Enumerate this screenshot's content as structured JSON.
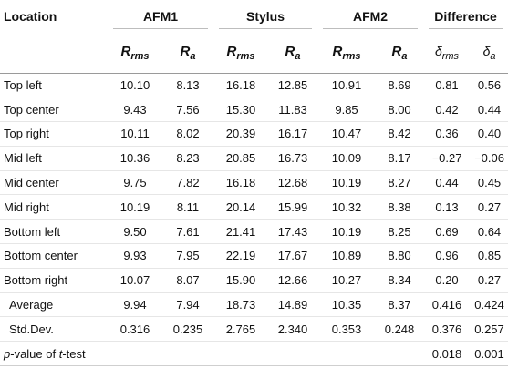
{
  "table": {
    "headers": {
      "location": "Location",
      "groups": [
        "AFM1",
        "Stylus",
        "AFM2",
        "Difference"
      ],
      "sub": {
        "rms_base": "R",
        "rms_sub": "rms",
        "a_base": "R",
        "a_sub": "a",
        "d_rms_base": "δ",
        "d_rms_sub": "rms",
        "d_a_base": "δ",
        "d_a_sub": "a"
      }
    },
    "rows": [
      {
        "location": "Top left",
        "afm1_rms": "10.10",
        "afm1_a": "8.13",
        "stylus_rms": "16.18",
        "stylus_a": "12.85",
        "afm2_rms": "10.91",
        "afm2_a": "8.69",
        "d_rms": "0.81",
        "d_a": "0.56"
      },
      {
        "location": "Top center",
        "afm1_rms": "9.43",
        "afm1_a": "7.56",
        "stylus_rms": "15.30",
        "stylus_a": "11.83",
        "afm2_rms": "9.85",
        "afm2_a": "8.00",
        "d_rms": "0.42",
        "d_a": "0.44"
      },
      {
        "location": "Top right",
        "afm1_rms": "10.11",
        "afm1_a": "8.02",
        "stylus_rms": "20.39",
        "stylus_a": "16.17",
        "afm2_rms": "10.47",
        "afm2_a": "8.42",
        "d_rms": "0.36",
        "d_a": "0.40"
      },
      {
        "location": "Mid left",
        "afm1_rms": "10.36",
        "afm1_a": "8.23",
        "stylus_rms": "20.85",
        "stylus_a": "16.73",
        "afm2_rms": "10.09",
        "afm2_a": "8.17",
        "d_rms": "−0.27",
        "d_a": "−0.06"
      },
      {
        "location": "Mid center",
        "afm1_rms": "9.75",
        "afm1_a": "7.82",
        "stylus_rms": "16.18",
        "stylus_a": "12.68",
        "afm2_rms": "10.19",
        "afm2_a": "8.27",
        "d_rms": "0.44",
        "d_a": "0.45"
      },
      {
        "location": "Mid right",
        "afm1_rms": "10.19",
        "afm1_a": "8.11",
        "stylus_rms": "20.14",
        "stylus_a": "15.99",
        "afm2_rms": "10.32",
        "afm2_a": "8.38",
        "d_rms": "0.13",
        "d_a": "0.27"
      },
      {
        "location": "Bottom left",
        "afm1_rms": "9.50",
        "afm1_a": "7.61",
        "stylus_rms": "21.41",
        "stylus_a": "17.43",
        "afm2_rms": "10.19",
        "afm2_a": "8.25",
        "d_rms": "0.69",
        "d_a": "0.64"
      },
      {
        "location": "Bottom center",
        "afm1_rms": "9.93",
        "afm1_a": "7.95",
        "stylus_rms": "22.19",
        "stylus_a": "17.67",
        "afm2_rms": "10.89",
        "afm2_a": "8.80",
        "d_rms": "0.96",
        "d_a": "0.85"
      },
      {
        "location": "Bottom right",
        "afm1_rms": "10.07",
        "afm1_a": "8.07",
        "stylus_rms": "15.90",
        "stylus_a": "12.66",
        "afm2_rms": "10.27",
        "afm2_a": "8.34",
        "d_rms": "0.20",
        "d_a": "0.27"
      },
      {
        "location": "Average",
        "afm1_rms": "9.94",
        "afm1_a": "7.94",
        "stylus_rms": "18.73",
        "stylus_a": "14.89",
        "afm2_rms": "10.35",
        "afm2_a": "8.37",
        "d_rms": "0.416",
        "d_a": "0.424"
      },
      {
        "location": "Std.Dev.",
        "afm1_rms": "0.316",
        "afm1_a": "0.235",
        "stylus_rms": "2.765",
        "stylus_a": "2.340",
        "afm2_rms": "0.353",
        "afm2_a": "0.248",
        "d_rms": "0.376",
        "d_a": "0.257"
      }
    ],
    "pvalue_row": {
      "label_p": "p",
      "label_mid": "-value of ",
      "label_t": "t",
      "label_end": "-test",
      "d_rms": "0.018",
      "d_a": "0.001"
    }
  }
}
